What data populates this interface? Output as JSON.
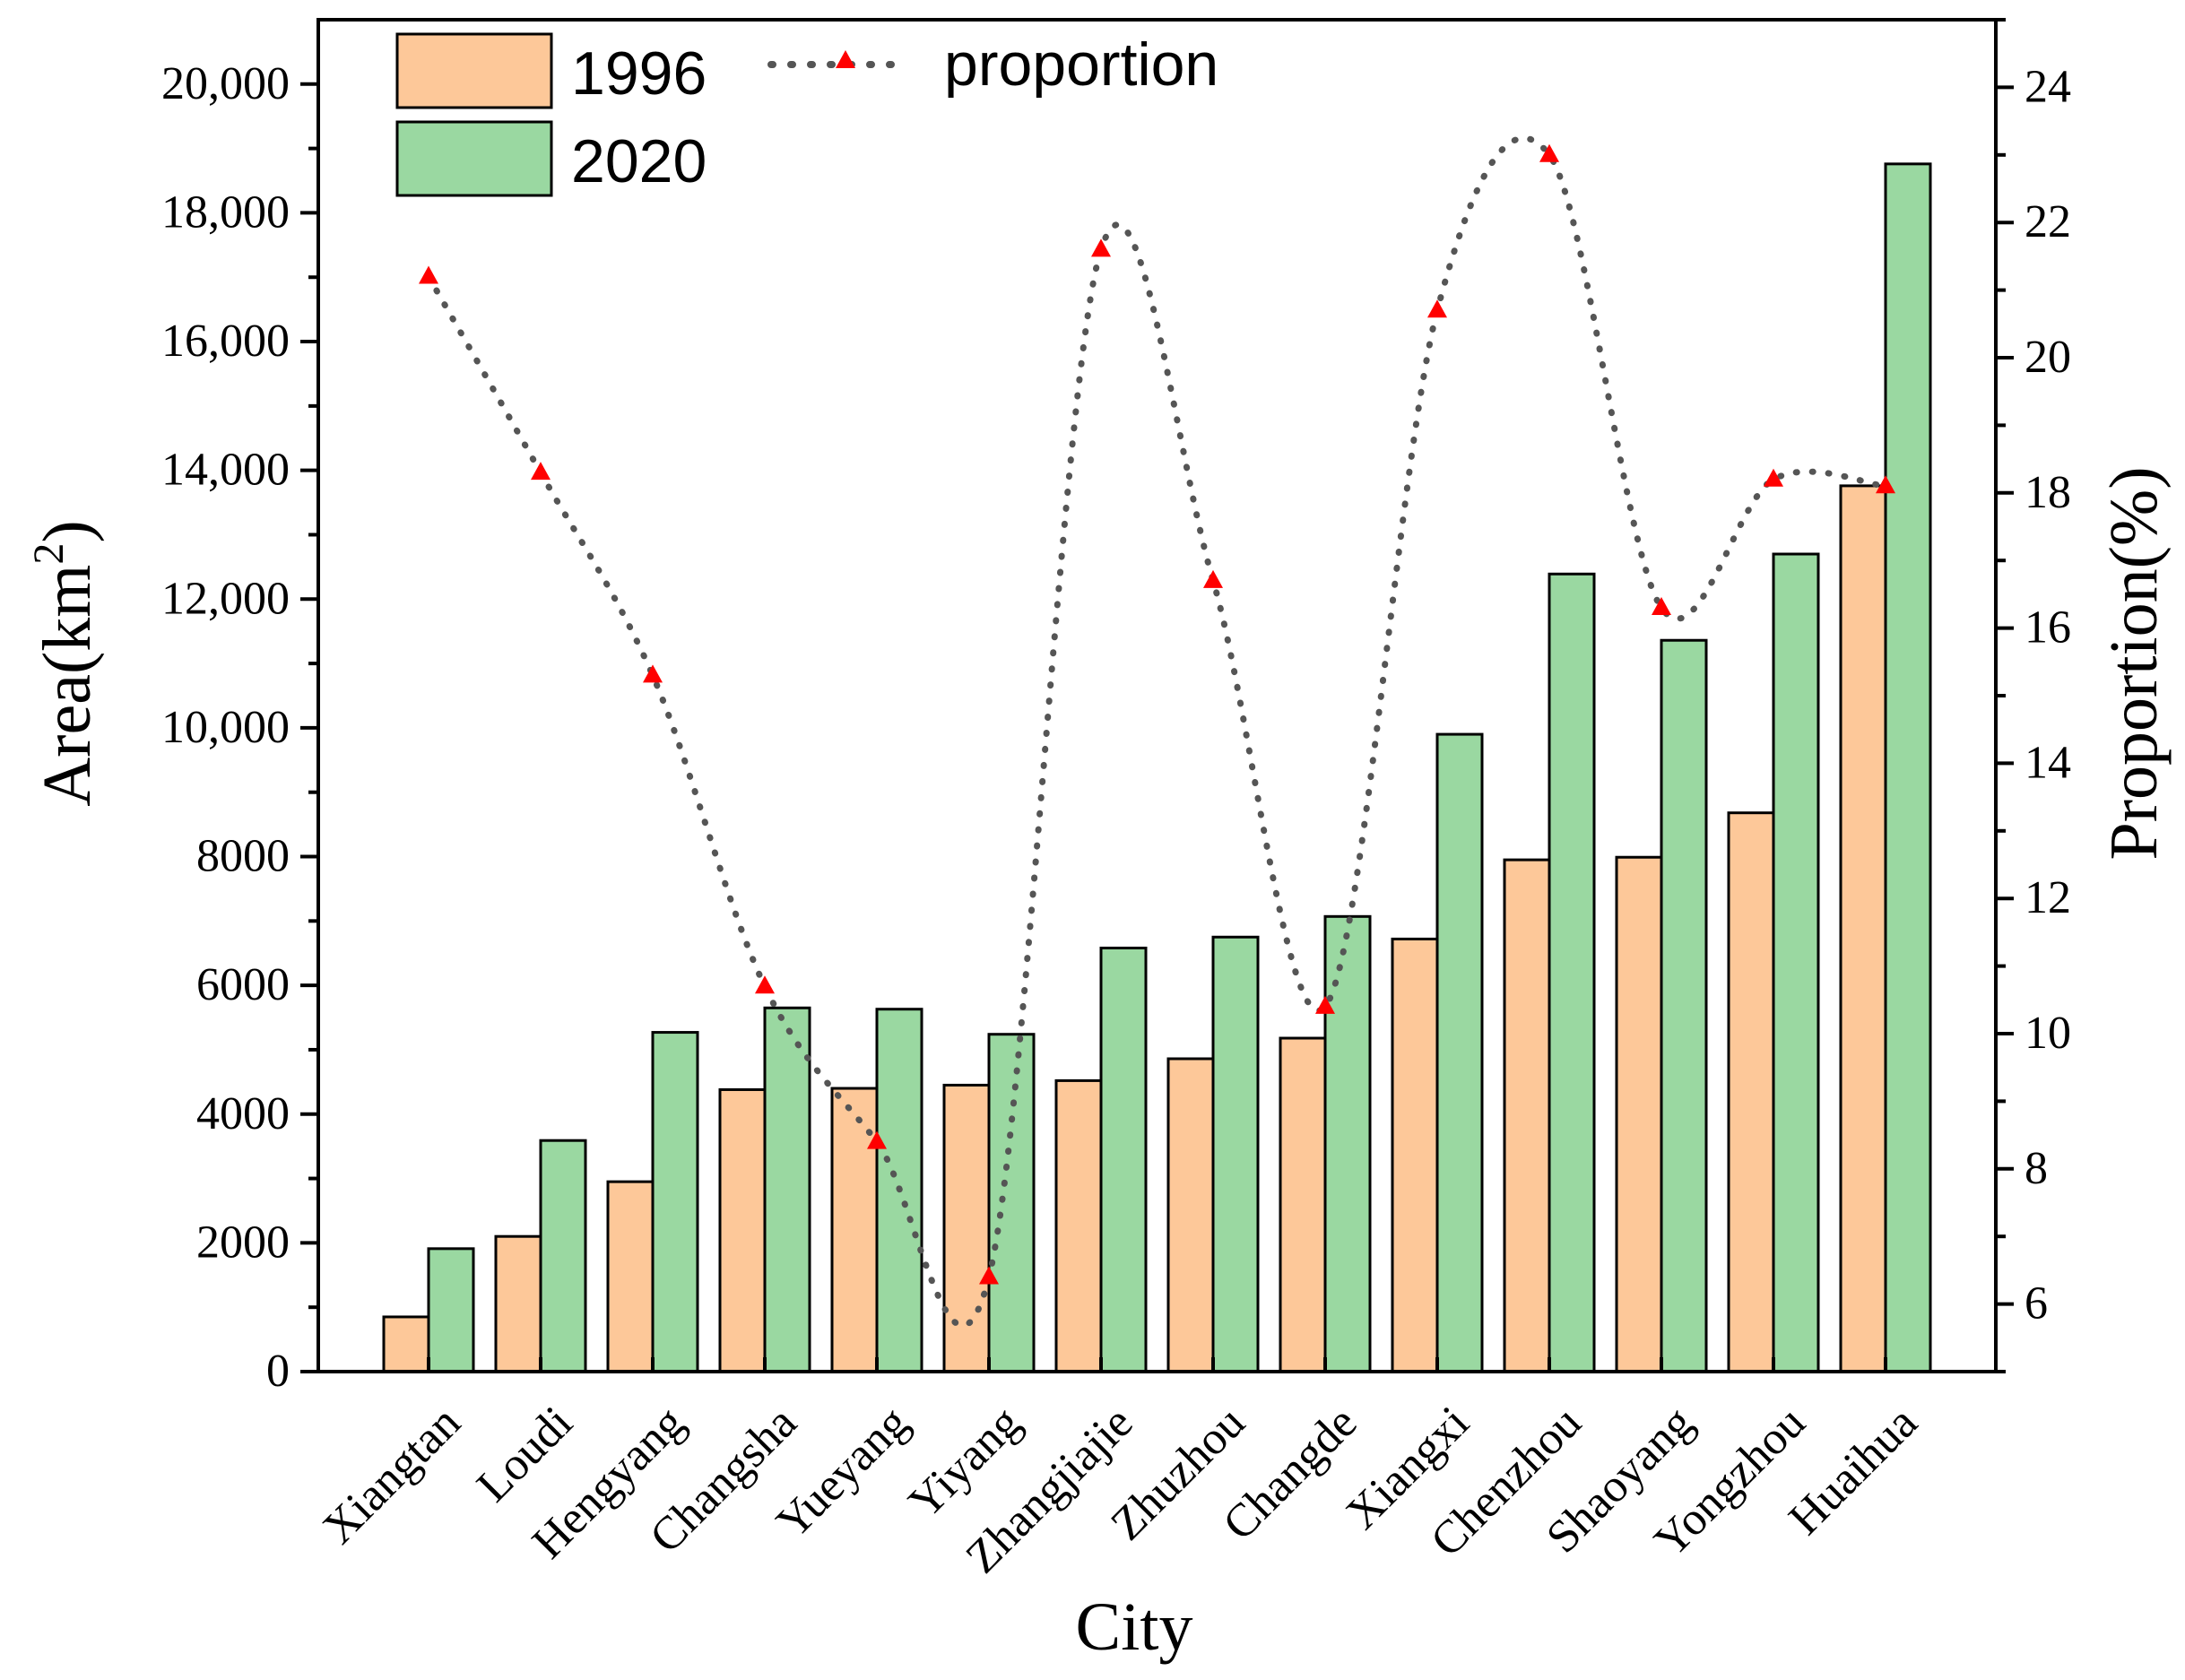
{
  "chart_data": {
    "type": "bar",
    "xlabel": "City",
    "ylabel": "Area(km",
    "ylabel_sup": "2",
    "ylabel_close": ")",
    "y2label": "Proportion(%)",
    "ylim": [
      0,
      21000
    ],
    "y2lim": [
      5,
      25
    ],
    "yticks": [
      0,
      2000,
      4000,
      6000,
      8000,
      10000,
      12000,
      14000,
      16000,
      18000,
      20000
    ],
    "ytick_labels": [
      "0",
      "2000",
      "4000",
      "6000",
      "8000",
      "10,000",
      "12,000",
      "14,000",
      "16,000",
      "18,000",
      "20,000"
    ],
    "y2ticks": [
      6,
      8,
      10,
      12,
      14,
      16,
      18,
      20,
      22,
      24
    ],
    "y2tick_labels": [
      "6",
      "8",
      "10",
      "12",
      "14",
      "16",
      "18",
      "20",
      "22",
      "24"
    ],
    "categories": [
      "Xiangtan",
      "Loudi",
      "Hengyang",
      "Changsha",
      "Yueyang",
      "Yiyang",
      "Zhangjiajie",
      "Zhuzhou",
      "Changde",
      "Xiangxi",
      "Chenzhou",
      "Shaoyang",
      "Yongzhou",
      "Huaihua"
    ],
    "series": [
      {
        "name": "1996",
        "type": "bar",
        "color": "#fdc899",
        "values": [
          850,
          2100,
          2950,
          4380,
          4400,
          4450,
          4520,
          4860,
          5180,
          6720,
          7950,
          7990,
          8680,
          13760
        ]
      },
      {
        "name": "2020",
        "type": "bar",
        "color": "#9ad8a1",
        "values": [
          1910,
          3590,
          5270,
          5650,
          5630,
          5240,
          6580,
          6750,
          7070,
          9900,
          12390,
          11360,
          12700,
          18760
        ]
      },
      {
        "name": "proportion",
        "type": "line",
        "axis": "y2",
        "color": "#ff0000",
        "line_color": "#555555",
        "values": [
          21.2,
          18.3,
          15.3,
          10.7,
          8.4,
          6.4,
          21.6,
          16.7,
          10.4,
          20.7,
          23.0,
          16.3,
          18.2,
          18.1
        ]
      }
    ],
    "legend": {
      "placement": "top-left"
    },
    "grid": false
  }
}
